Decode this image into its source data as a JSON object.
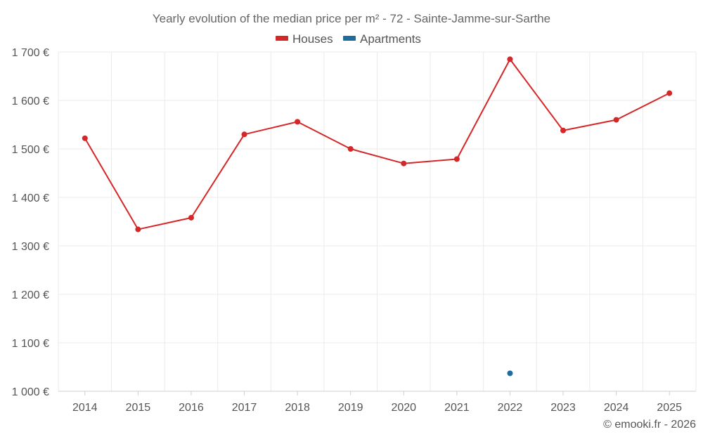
{
  "chart_data": {
    "type": "line",
    "title": "Yearly evolution of the median price per m² - 72 - Sainte-Jamme-sur-Sarthe",
    "categories": [
      "2014",
      "2015",
      "2016",
      "2017",
      "2018",
      "2019",
      "2020",
      "2021",
      "2022",
      "2023",
      "2024",
      "2025"
    ],
    "series": [
      {
        "name": "Houses",
        "color": "#d62728",
        "values": [
          1522,
          1334,
          1358,
          1530,
          1556,
          1500,
          1470,
          1479,
          1685,
          1538,
          1560,
          1615
        ]
      },
      {
        "name": "Apartments",
        "color": "#1f6c9f",
        "values": [
          null,
          null,
          null,
          null,
          null,
          null,
          null,
          null,
          1037,
          null,
          null,
          null
        ]
      }
    ],
    "ylim": [
      1000,
      1700
    ],
    "yticks": [
      1000,
      1100,
      1200,
      1300,
      1400,
      1500,
      1600,
      1700
    ],
    "ytick_labels": [
      "1 000 €",
      "1 100 €",
      "1 200 €",
      "1 300 €",
      "1 400 €",
      "1 500 €",
      "1 600 €",
      "1 700 €"
    ],
    "xlabel": "",
    "ylabel": "",
    "grid": true,
    "legend_position": "top-center",
    "credit": "© emooki.fr - 2026"
  }
}
